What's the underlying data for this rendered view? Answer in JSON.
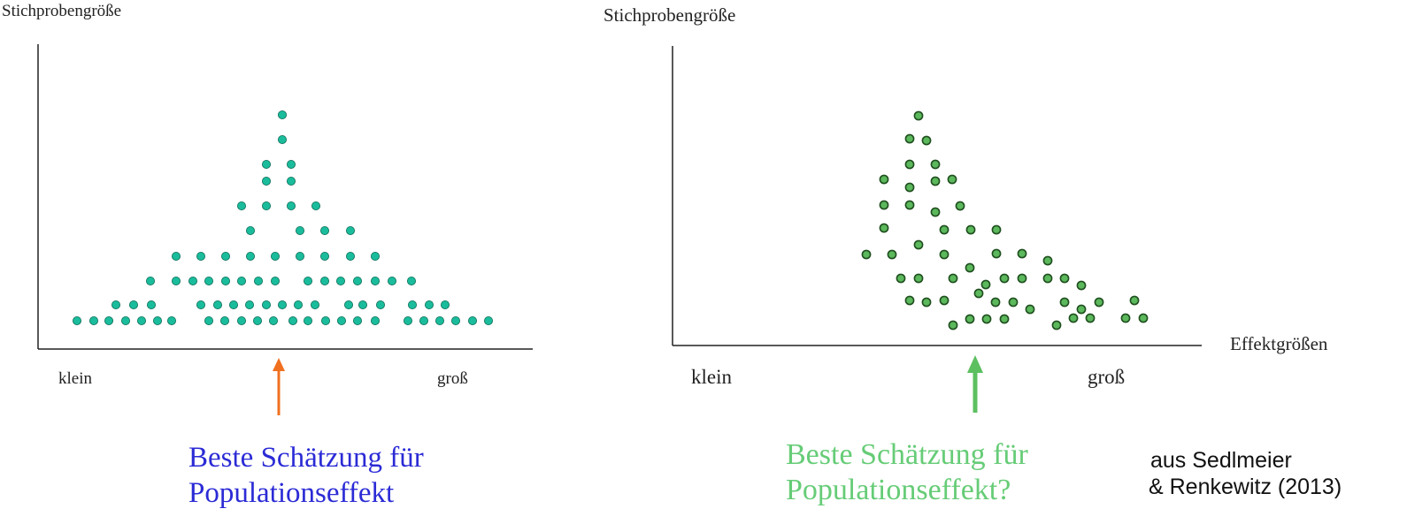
{
  "left": {
    "ylabel": "Stichprobengröße",
    "tick_left": "klein",
    "tick_right": "groß",
    "caption": [
      "Beste Schätzung für",
      "Populationseffekt"
    ],
    "colors": {
      "dot": "#1abc9c",
      "dot_stroke": "#0b6b55",
      "arrow": "#f07020",
      "caption": "#2b2bd6"
    }
  },
  "right": {
    "ylabel": "Stichprobengröße",
    "xlabel": "Effektgrößen",
    "tick_left": "klein",
    "tick_right": "groß",
    "caption": [
      "Beste Schätzung für",
      "Populationseffekt?"
    ],
    "colors": {
      "dot": "#5cb85c",
      "dot_stroke": "#1f4f1f",
      "arrow": "#5cc060",
      "caption": "#66cc77"
    }
  },
  "source": [
    "aus Sedlmeier",
    "& Renkewitz (2013)"
  ]
}
